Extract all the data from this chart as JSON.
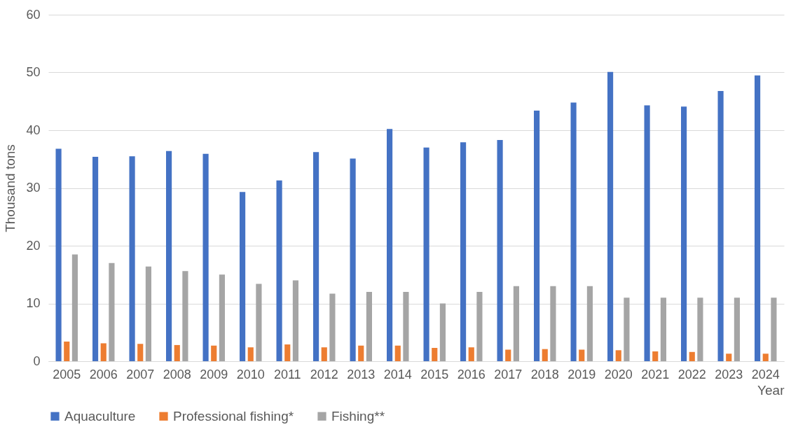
{
  "chart_data": {
    "type": "bar",
    "xlabel": "Year",
    "ylabel": "Thousand tons",
    "categories": [
      "2005",
      "2006",
      "2007",
      "2008",
      "2009",
      "2010",
      "2011",
      "2012",
      "2013",
      "2014",
      "2015",
      "2016",
      "2017",
      "2018",
      "2019",
      "2020",
      "2021",
      "2022",
      "2023",
      "2024"
    ],
    "series": [
      {
        "name": "Aquaculture",
        "color": "#4472c4",
        "values": [
          36.8,
          35.4,
          35.5,
          36.4,
          35.9,
          29.3,
          31.3,
          36.2,
          35.1,
          40.2,
          37.0,
          37.9,
          38.3,
          43.4,
          44.8,
          50.1,
          44.3,
          44.1,
          46.8,
          49.5
        ]
      },
      {
        "name": "Professional fishing*",
        "color": "#ed7d31",
        "values": [
          3.4,
          3.1,
          3.0,
          2.8,
          2.7,
          2.4,
          2.9,
          2.4,
          2.7,
          2.7,
          2.3,
          2.4,
          2.0,
          2.1,
          2.0,
          1.9,
          1.7,
          1.6,
          1.3,
          1.3
        ]
      },
      {
        "name": "Fishing**",
        "color": "#a5a5a5",
        "values": [
          18.5,
          17.0,
          16.4,
          15.6,
          15.0,
          13.4,
          14.0,
          11.7,
          12.0,
          12.0,
          10.0,
          12.0,
          13.0,
          13.0,
          13.0,
          11.0,
          11.0,
          11.0,
          11.0,
          11.0
        ]
      }
    ],
    "ylim": [
      0,
      60
    ],
    "yticks": [
      0,
      10,
      20,
      30,
      40,
      50,
      60
    ],
    "grid": "y",
    "legend": "bottom"
  }
}
